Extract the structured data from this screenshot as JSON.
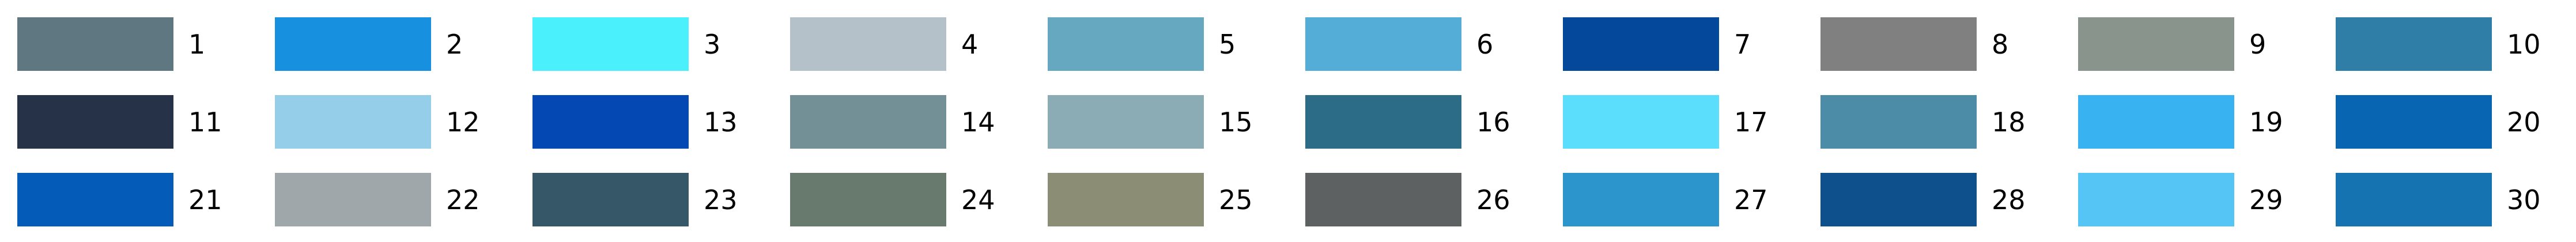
{
  "chart_data": {
    "type": "legend",
    "rows": 3,
    "columns": 10,
    "items": [
      {
        "label": "1",
        "color": "#5E7781"
      },
      {
        "label": "2",
        "color": "#1790DF"
      },
      {
        "label": "3",
        "color": "#4AF0FC"
      },
      {
        "label": "4",
        "color": "#B5C1C8"
      },
      {
        "label": "5",
        "color": "#65A8BF"
      },
      {
        "label": "6",
        "color": "#54ADD7"
      },
      {
        "label": "7",
        "color": "#03489A"
      },
      {
        "label": "8",
        "color": "#808080"
      },
      {
        "label": "9",
        "color": "#89958C"
      },
      {
        "label": "10",
        "color": "#2E7EA8"
      },
      {
        "label": "11",
        "color": "#263248"
      },
      {
        "label": "12",
        "color": "#95CEE9"
      },
      {
        "label": "13",
        "color": "#0348B3"
      },
      {
        "label": "14",
        "color": "#739096"
      },
      {
        "label": "15",
        "color": "#8CACB5"
      },
      {
        "label": "16",
        "color": "#2C6C86"
      },
      {
        "label": "17",
        "color": "#5BDDFC"
      },
      {
        "label": "18",
        "color": "#4C8CA6"
      },
      {
        "label": "19",
        "color": "#39B2F2"
      },
      {
        "label": "20",
        "color": "#0765B2"
      },
      {
        "label": "21",
        "color": "#055CB8"
      },
      {
        "label": "22",
        "color": "#A0A7AB"
      },
      {
        "label": "23",
        "color": "#365768"
      },
      {
        "label": "24",
        "color": "#68796D"
      },
      {
        "label": "25",
        "color": "#8B8D74"
      },
      {
        "label": "26",
        "color": "#5D6161"
      },
      {
        "label": "27",
        "color": "#2C95CB"
      },
      {
        "label": "28",
        "color": "#0E508B"
      },
      {
        "label": "29",
        "color": "#55C5F5"
      },
      {
        "label": "30",
        "color": "#1473B0"
      }
    ]
  }
}
